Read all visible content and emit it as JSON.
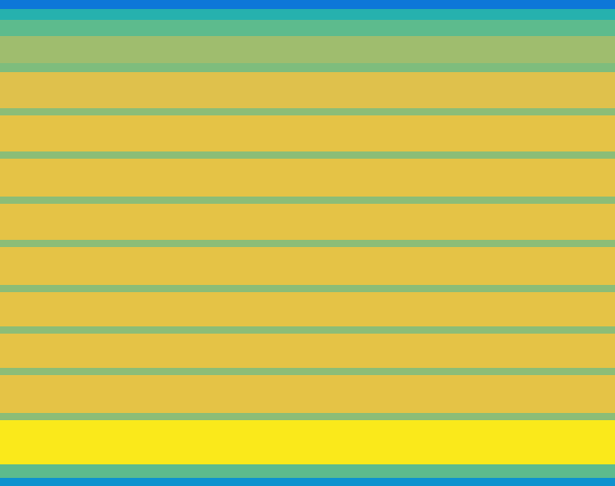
{
  "chart_data": {
    "type": "heatmap",
    "tick_labels": false,
    "grid": false,
    "xlim": [
      0,
      100
    ],
    "ylim": [
      0,
      100
    ],
    "zlim": [
      0,
      1
    ],
    "x_edges": [
      0,
      100
    ],
    "y_edges": [
      0,
      1.7,
      4.5,
      13.5,
      15.0,
      22.8,
      24.3,
      31.4,
      32.8,
      39.9,
      41.4,
      49.2,
      50.6,
      58.1,
      59.6,
      67.3,
      68.8,
      76.3,
      77.7,
      85.2,
      87.0,
      92.6,
      95.9,
      98.1,
      100
    ],
    "values": [
      [
        0.3
      ],
      [
        0.55
      ],
      [
        0.95
      ],
      [
        0.62
      ],
      [
        0.8
      ],
      [
        0.62
      ],
      [
        0.8
      ],
      [
        0.62
      ],
      [
        0.8
      ],
      [
        0.62
      ],
      [
        0.8
      ],
      [
        0.62
      ],
      [
        0.8
      ],
      [
        0.62
      ],
      [
        0.8
      ],
      [
        0.62
      ],
      [
        0.8
      ],
      [
        0.62
      ],
      [
        0.78
      ],
      [
        0.6
      ],
      [
        0.65
      ],
      [
        0.55
      ],
      [
        0.45
      ],
      [
        0.2
      ]
    ]
  }
}
